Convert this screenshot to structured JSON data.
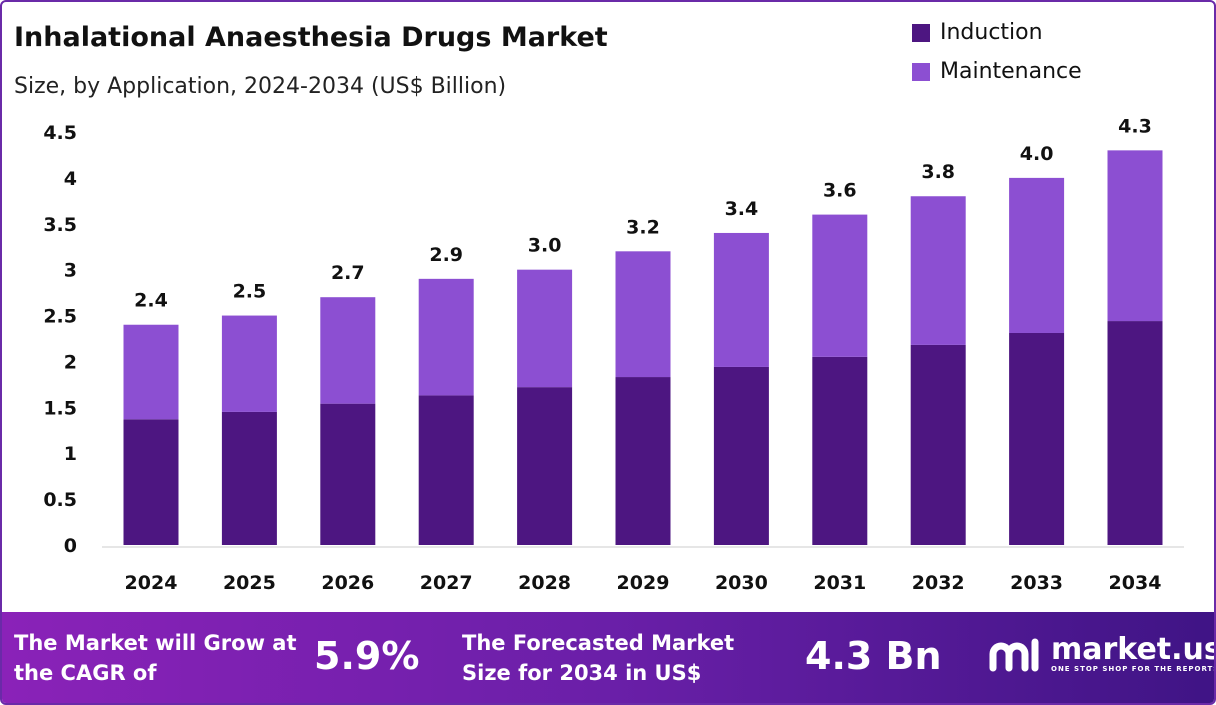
{
  "chart_data": {
    "type": "bar",
    "stacked": true,
    "title": "Inhalational Anaesthesia Drugs Market",
    "subtitle": "Size, by Application, 2024-2034 (US$ Billion)",
    "categories": [
      "2024",
      "2025",
      "2026",
      "2027",
      "2028",
      "2029",
      "2030",
      "2031",
      "2032",
      "2033",
      "2034"
    ],
    "series": [
      {
        "name": "Induction",
        "color": "#4d1681",
        "values": [
          1.37,
          1.45,
          1.54,
          1.63,
          1.72,
          1.83,
          1.94,
          2.05,
          2.18,
          2.31,
          2.44
        ]
      },
      {
        "name": "Maintenance",
        "color": "#8c4fd2",
        "values": [
          1.03,
          1.05,
          1.16,
          1.27,
          1.28,
          1.37,
          1.46,
          1.55,
          1.62,
          1.69,
          1.86
        ]
      }
    ],
    "totals": [
      "2.4",
      "2.5",
      "2.7",
      "2.9",
      "3.0",
      "3.2",
      "3.4",
      "3.6",
      "3.8",
      "4.0",
      "4.3"
    ],
    "yticks": [
      "0",
      "0.5",
      "1",
      "1.5",
      "2",
      "2.5",
      "3",
      "3.5",
      "4",
      "4.5"
    ],
    "ylim": [
      0,
      4.5
    ],
    "grid": false,
    "legend": "top-right"
  },
  "footer": {
    "cagr_text": "The Market will Grow at the CAGR of",
    "cagr_value": "5.9%",
    "forecast_text": "The Forecasted Market Size for 2034 in US$",
    "forecast_value": "4.3 Bn",
    "logo_text": "market.us",
    "logo_tagline": "ONE STOP SHOP FOR THE REPORTS"
  }
}
